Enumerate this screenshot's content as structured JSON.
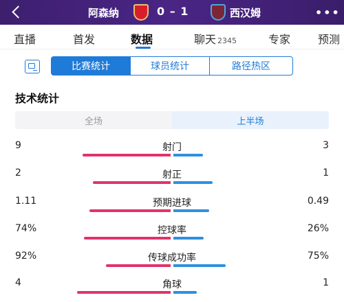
{
  "header": {
    "home_team": "阿森纳",
    "away_team": "西汉姆",
    "score": "0 – 1",
    "home_crest": "arsenal-crest-icon",
    "away_crest": "west-ham-crest-icon",
    "more": "•••"
  },
  "tabs": [
    {
      "label": "直播"
    },
    {
      "label": "首发"
    },
    {
      "label": "数据"
    },
    {
      "label": "聊天",
      "count": "2345"
    },
    {
      "label": "专家"
    },
    {
      "label": "预测"
    }
  ],
  "segments": [
    "比赛统计",
    "球员统计",
    "路径热区"
  ],
  "section_title": "技术统计",
  "halves": [
    "全场",
    "上半场"
  ],
  "stats": [
    {
      "name": "射门",
      "home": "9",
      "away": "3",
      "home_share": 0.75
    },
    {
      "name": "射正",
      "home": "2",
      "away": "1",
      "home_share": 0.667
    },
    {
      "name": "预期进球",
      "home": "1.11",
      "away": "0.49",
      "home_share": 0.694
    },
    {
      "name": "控球率",
      "home": "74%",
      "away": "26%",
      "home_share": 0.74
    },
    {
      "name": "传球成功率",
      "home": "92%",
      "away": "75%",
      "home_share": 0.551
    },
    {
      "name": "角球",
      "home": "4",
      "away": "1",
      "home_share": 0.8
    }
  ],
  "colors": {
    "home": "#e0336b",
    "away": "#2f8fe0",
    "accent": "#1f7bd8",
    "header": "#4a2585"
  }
}
